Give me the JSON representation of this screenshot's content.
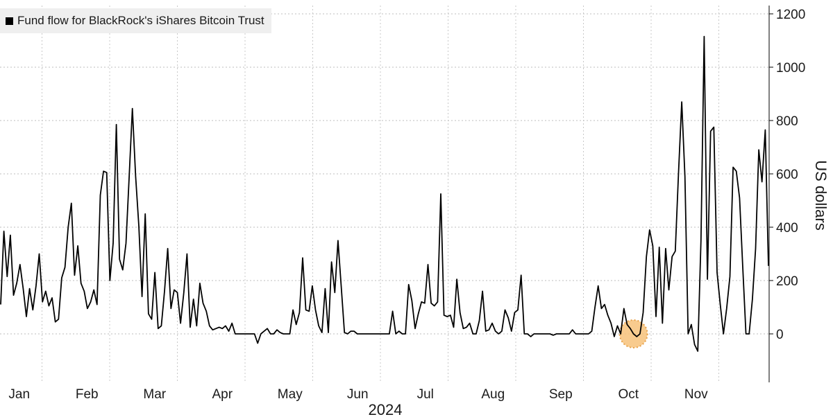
{
  "chart_data": {
    "type": "line",
    "legend": "Fund flow for BlackRock's iShares Bitcoin Trust",
    "ylabel": "US dollars",
    "xlabel": "2024",
    "ylim": [
      -180,
      1230
    ],
    "yticks": [
      0,
      200,
      400,
      600,
      800,
      1000,
      1200
    ],
    "months": [
      "Jan",
      "Feb",
      "Mar",
      "Apr",
      "May",
      "Jun",
      "Jul",
      "Aug",
      "Sep",
      "Oct",
      "Nov"
    ],
    "line_color": "#000000",
    "highlight_color": "#f7c27a",
    "highlight_index": 197,
    "values": [
      110,
      385,
      215,
      370,
      145,
      190,
      260,
      170,
      65,
      170,
      90,
      180,
      300,
      120,
      160,
      105,
      135,
      45,
      55,
      210,
      250,
      400,
      490,
      220,
      330,
      190,
      160,
      95,
      120,
      165,
      110,
      520,
      610,
      605,
      200,
      340,
      785,
      280,
      240,
      340,
      590,
      845,
      590,
      405,
      140,
      450,
      75,
      55,
      230,
      20,
      30,
      160,
      320,
      95,
      165,
      155,
      40,
      155,
      300,
      25,
      130,
      30,
      190,
      115,
      85,
      30,
      15,
      20,
      25,
      20,
      30,
      10,
      40,
      0,
      0,
      0,
      0,
      0,
      0,
      0,
      -35,
      0,
      10,
      20,
      0,
      0,
      15,
      5,
      0,
      0,
      0,
      90,
      35,
      80,
      285,
      90,
      85,
      180,
      90,
      30,
      5,
      170,
      5,
      270,
      155,
      350,
      180,
      5,
      0,
      10,
      10,
      0,
      0,
      0,
      0,
      0,
      0,
      0,
      0,
      0,
      0,
      0,
      85,
      0,
      10,
      0,
      0,
      185,
      125,
      20,
      75,
      120,
      115,
      260,
      115,
      105,
      120,
      525,
      70,
      65,
      70,
      25,
      205,
      80,
      20,
      25,
      40,
      0,
      0,
      50,
      160,
      10,
      15,
      40,
      10,
      0,
      10,
      90,
      60,
      10,
      80,
      90,
      220,
      0,
      0,
      -10,
      0,
      0,
      0,
      0,
      0,
      0,
      -5,
      0,
      0,
      0,
      0,
      0,
      15,
      0,
      0,
      0,
      0,
      0,
      10,
      100,
      180,
      95,
      110,
      70,
      40,
      -10,
      30,
      0,
      95,
      35,
      20,
      0,
      -10,
      0,
      80,
      290,
      390,
      330,
      65,
      325,
      40,
      320,
      165,
      290,
      310,
      600,
      870,
      590,
      0,
      35,
      -40,
      -65,
      350,
      1115,
      205,
      760,
      775,
      230,
      110,
      0,
      95,
      215,
      625,
      610,
      510,
      250,
      0,
      0,
      130,
      320,
      690,
      570,
      765,
      255
    ]
  }
}
